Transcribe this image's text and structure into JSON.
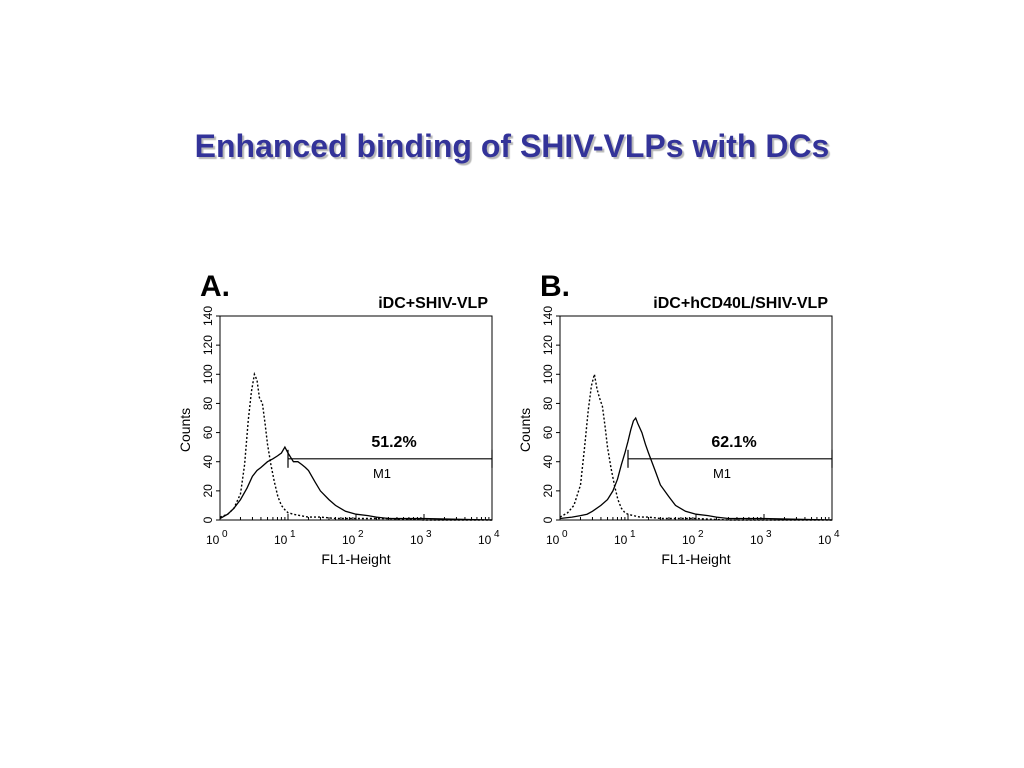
{
  "title": "Enhanced binding of SHIV-VLPs with DCs",
  "chart_data": [
    {
      "type": "line",
      "panel_label": "A.",
      "title": "iDC+SHIV-VLP",
      "xlabel": "FL1-Height",
      "ylabel": "Counts",
      "xscale": "log",
      "xlim": [
        1,
        10000
      ],
      "ylim": [
        0,
        140
      ],
      "xticks": [
        {
          "base": "10",
          "exp": "0"
        },
        {
          "base": "10",
          "exp": "1"
        },
        {
          "base": "10",
          "exp": "2"
        },
        {
          "base": "10",
          "exp": "3"
        },
        {
          "base": "10",
          "exp": "4"
        }
      ],
      "yticks": [
        "0",
        "20",
        "40",
        "60",
        "80",
        "100",
        "120",
        "140"
      ],
      "gate": {
        "label": "M1",
        "percent": "51.2%",
        "x_start": 10,
        "x_end": 10000,
        "y": 42
      },
      "series": [
        {
          "style": "dotted",
          "x": [
            1,
            1.3,
            1.6,
            2,
            2.3,
            2.6,
            2.9,
            3.2,
            3.5,
            3.8,
            4.2,
            4.6,
            5,
            5.6,
            6.3,
            7.1,
            8,
            9,
            10,
            12,
            15,
            20,
            30,
            50,
            100,
            300,
            1000,
            10000
          ],
          "y": [
            2,
            4,
            8,
            18,
            38,
            68,
            88,
            100,
            96,
            84,
            80,
            66,
            52,
            38,
            26,
            16,
            10,
            7,
            5,
            4,
            3,
            2,
            2,
            1,
            1,
            1,
            0,
            0
          ]
        },
        {
          "style": "solid",
          "x": [
            1,
            1.3,
            1.6,
            2,
            2.5,
            3,
            3.5,
            4,
            5,
            6,
            7,
            8,
            9,
            10,
            12,
            14,
            16,
            18,
            20,
            25,
            30,
            40,
            50,
            70,
            100,
            150,
            200,
            300,
            500,
            1000,
            10000
          ],
          "y": [
            1,
            4,
            8,
            14,
            22,
            30,
            34,
            36,
            40,
            42,
            44,
            46,
            50,
            46,
            40,
            40,
            38,
            36,
            34,
            26,
            20,
            14,
            10,
            6,
            4,
            3,
            2,
            1,
            1,
            1,
            0
          ]
        }
      ]
    },
    {
      "type": "line",
      "panel_label": "B.",
      "title": "iDC+hCD40L/SHIV-VLP",
      "xlabel": "FL1-Height",
      "ylabel": "Counts",
      "xscale": "log",
      "xlim": [
        1,
        10000
      ],
      "ylim": [
        0,
        140
      ],
      "xticks": [
        {
          "base": "10",
          "exp": "0"
        },
        {
          "base": "10",
          "exp": "1"
        },
        {
          "base": "10",
          "exp": "2"
        },
        {
          "base": "10",
          "exp": "3"
        },
        {
          "base": "10",
          "exp": "4"
        }
      ],
      "yticks": [
        "0",
        "20",
        "40",
        "60",
        "80",
        "100",
        "120",
        "140"
      ],
      "gate": {
        "label": "M1",
        "percent": "62.1%",
        "x_start": 10,
        "x_end": 10000,
        "y": 42
      },
      "series": [
        {
          "style": "dotted",
          "x": [
            1,
            1.3,
            1.6,
            2,
            2.3,
            2.6,
            2.9,
            3.2,
            3.5,
            3.8,
            4.2,
            4.6,
            5,
            5.6,
            6.3,
            7.1,
            8,
            9,
            10,
            12,
            15,
            20,
            30,
            50,
            100,
            300,
            1000,
            10000
          ],
          "y": [
            2,
            5,
            10,
            24,
            50,
            75,
            92,
            100,
            90,
            84,
            78,
            64,
            50,
            36,
            24,
            14,
            8,
            5,
            4,
            3,
            2,
            2,
            1,
            1,
            1,
            0,
            0,
            0
          ]
        },
        {
          "style": "solid",
          "x": [
            1,
            1.5,
            2,
            2.5,
            3,
            4,
            5,
            6,
            7,
            8,
            9,
            10,
            11,
            12,
            13,
            14,
            16,
            18,
            20,
            25,
            30,
            40,
            50,
            70,
            100,
            150,
            200,
            300,
            500,
            1000,
            10000
          ],
          "y": [
            1,
            2,
            3,
            4,
            6,
            10,
            14,
            20,
            28,
            38,
            46,
            54,
            62,
            68,
            70,
            66,
            60,
            52,
            46,
            34,
            24,
            16,
            10,
            6,
            4,
            3,
            2,
            1,
            1,
            1,
            0
          ]
        }
      ]
    }
  ]
}
